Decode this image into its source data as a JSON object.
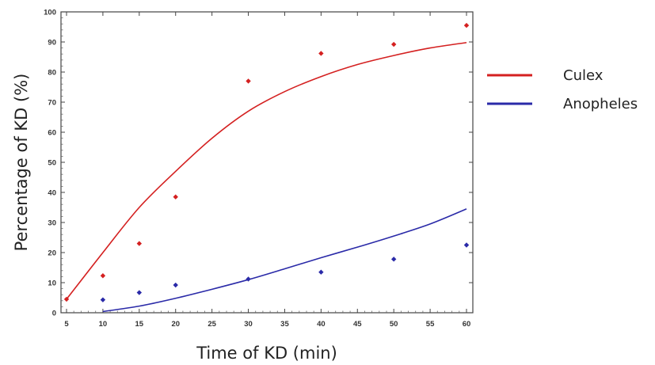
{
  "chart_data": {
    "type": "scatter",
    "xlabel": "Time of KD (min)",
    "ylabel": "Percentage of KD (%)",
    "xlim": [
      5,
      60
    ],
    "ylim": [
      0,
      100
    ],
    "x_ticks": [
      5,
      10,
      15,
      20,
      25,
      30,
      35,
      40,
      45,
      50,
      55,
      60
    ],
    "y_ticks": [
      0,
      10,
      20,
      30,
      40,
      50,
      60,
      70,
      80,
      90,
      100
    ],
    "grid": false,
    "legend_position": "right",
    "series": [
      {
        "name": "Culex",
        "color": "#d42020",
        "x": [
          5,
          10,
          15,
          20,
          30,
          40,
          50,
          60
        ],
        "y": [
          4.5,
          12.3,
          23,
          38.5,
          77,
          86.2,
          89.2,
          95.5
        ],
        "fit_curve": [
          [
            5,
            4.5
          ],
          [
            10,
            20
          ],
          [
            15,
            35
          ],
          [
            20,
            47
          ],
          [
            25,
            58
          ],
          [
            30,
            67
          ],
          [
            35,
            73.5
          ],
          [
            40,
            78.5
          ],
          [
            45,
            82.5
          ],
          [
            50,
            85.5
          ],
          [
            55,
            88
          ],
          [
            60,
            89.8
          ]
        ]
      },
      {
        "name": "Anopheles",
        "color": "#2a2aa8",
        "x": [
          10,
          15,
          20,
          30,
          40,
          50,
          60
        ],
        "y": [
          4.3,
          6.7,
          9.2,
          11.2,
          13.5,
          17.8,
          22.5
        ],
        "fit_curve": [
          [
            10,
            0.4
          ],
          [
            15,
            2.2
          ],
          [
            20,
            4.8
          ],
          [
            25,
            7.8
          ],
          [
            30,
            11
          ],
          [
            35,
            14.6
          ],
          [
            40,
            18.3
          ],
          [
            45,
            21.8
          ],
          [
            50,
            25.5
          ],
          [
            55,
            29.5
          ],
          [
            60,
            34.5
          ]
        ]
      }
    ]
  }
}
